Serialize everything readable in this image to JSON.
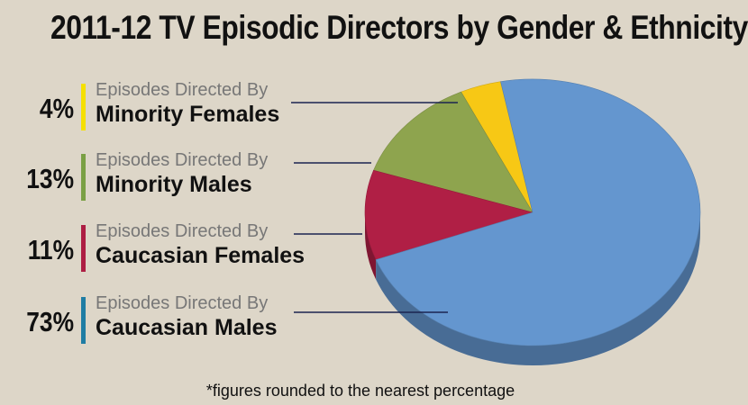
{
  "title": "2011-12 TV Episodic Directors by Gender & Ethnicity",
  "footnote": "*figures rounded to the nearest percentage",
  "chart_data": {
    "type": "pie",
    "title": "2011-12 TV Episodic Directors by Gender & Ethnicity",
    "legend_placement": "left",
    "slices": [
      {
        "label_prefix": "Episodes Directed By",
        "label": "Minority Females",
        "value": 4,
        "display": "4%",
        "color": "#f7c815"
      },
      {
        "label_prefix": "Episodes Directed By",
        "label": "Minority Males",
        "value": 13,
        "display": "13%",
        "color": "#8ea44e"
      },
      {
        "label_prefix": "Episodes Directed By",
        "label": "Caucasian Females",
        "value": 11,
        "display": "11%",
        "color": "#b01f45"
      },
      {
        "label_prefix": "Episodes Directed By",
        "label": "Caucasian Males",
        "value": 73,
        "display": "73%",
        "color": "#6496cf"
      }
    ],
    "bar_colors": [
      "#f5e000",
      "#7aa044",
      "#ad1e43",
      "#1f7da4"
    ]
  }
}
